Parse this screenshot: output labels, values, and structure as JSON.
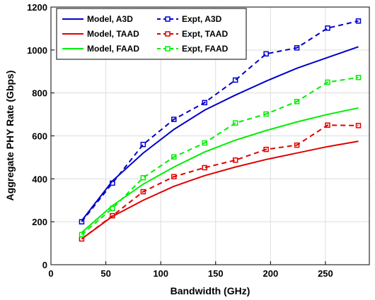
{
  "chart_data": {
    "type": "line",
    "xlabel": "Bandwidth (GHz)",
    "ylabel": "Aggregate PHY Rate (Gbps)",
    "xlim": [
      0,
      290
    ],
    "ylim": [
      0,
      1200
    ],
    "xticks": [
      0,
      50,
      100,
      150,
      200,
      250
    ],
    "yticks": [
      0,
      200,
      400,
      600,
      800,
      1000,
      1200
    ],
    "xtick_labels": [
      "0",
      "50",
      "100",
      "150",
      "200",
      "250"
    ],
    "ytick_labels": [
      "0",
      "200",
      "400",
      "600",
      "800",
      "1000",
      "1200"
    ],
    "grid": true,
    "legend_position": "top-left",
    "series": [
      {
        "name": "Model, A3D",
        "color": "#0000cc",
        "style": "solid",
        "marker": "none",
        "x": [
          28,
          56,
          84,
          112,
          140,
          168,
          196,
          224,
          252,
          280
        ],
        "y": [
          205,
          390,
          520,
          630,
          720,
          790,
          855,
          915,
          965,
          1015
        ]
      },
      {
        "name": "Model, TAAD",
        "color": "#e00000",
        "style": "solid",
        "marker": "none",
        "x": [
          28,
          56,
          84,
          112,
          140,
          168,
          196,
          224,
          252,
          280
        ],
        "y": [
          120,
          225,
          300,
          365,
          415,
          455,
          490,
          520,
          550,
          575
        ]
      },
      {
        "name": "Model, FAAD",
        "color": "#00ee00",
        "style": "solid",
        "marker": "none",
        "x": [
          28,
          56,
          84,
          112,
          140,
          168,
          196,
          224,
          252,
          280
        ],
        "y": [
          150,
          275,
          375,
          455,
          525,
          580,
          625,
          665,
          700,
          730
        ]
      },
      {
        "name": "Expt, A3D",
        "color": "#0000cc",
        "style": "dashed",
        "marker": "square",
        "x": [
          28,
          56,
          84,
          112,
          140,
          168,
          196,
          224,
          252,
          280
        ],
        "y": [
          200,
          380,
          560,
          677,
          755,
          860,
          982,
          1010,
          1102,
          1135
        ]
      },
      {
        "name": "Expt, TAAD",
        "color": "#e00000",
        "style": "dashed",
        "marker": "square",
        "x": [
          28,
          56,
          84,
          112,
          140,
          168,
          196,
          224,
          252,
          280
        ],
        "y": [
          120,
          228,
          340,
          410,
          452,
          487,
          537,
          557,
          650,
          648
        ]
      },
      {
        "name": "Expt, FAAD",
        "color": "#00ee00",
        "style": "dashed",
        "marker": "square",
        "x": [
          28,
          56,
          84,
          112,
          140,
          168,
          196,
          224,
          252,
          280
        ],
        "y": [
          140,
          262,
          405,
          502,
          567,
          660,
          702,
          760,
          850,
          872
        ]
      }
    ]
  }
}
